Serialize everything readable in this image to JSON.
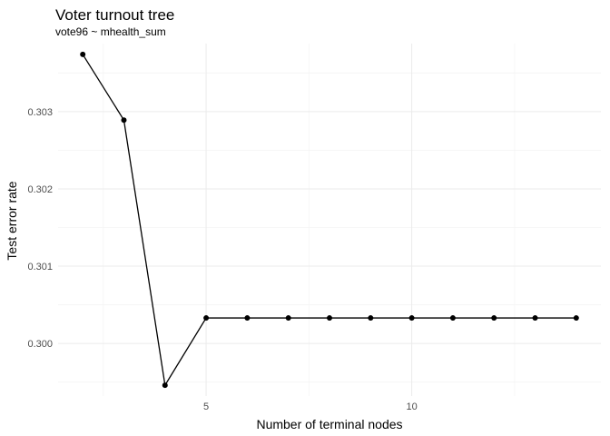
{
  "chart_data": {
    "type": "line",
    "title": "Voter turnout tree",
    "subtitle": "vote96 ~ mhealth_sum",
    "xlabel": "Number of terminal nodes",
    "ylabel": "Test error rate",
    "x": [
      2,
      3,
      4,
      5,
      6,
      7,
      8,
      9,
      10,
      11,
      12,
      13,
      14
    ],
    "y": [
      0.30374,
      0.30289,
      0.29946,
      0.30033,
      0.30033,
      0.30033,
      0.30033,
      0.30033,
      0.30033,
      0.30033,
      0.30033,
      0.30033,
      0.30033
    ],
    "xlim": [
      1.4,
      14.6
    ],
    "ylim": [
      0.29932,
      0.30388
    ],
    "x_ticks": [
      5,
      10
    ],
    "x_tick_labels": [
      "5",
      "10"
    ],
    "y_ticks": [
      0.3,
      0.301,
      0.302,
      0.303
    ],
    "y_tick_labels": [
      "0.300",
      "0.301",
      "0.302",
      "0.303"
    ],
    "grid": true,
    "legend": "none",
    "line_color": "#000000",
    "point_color": "#000000"
  }
}
